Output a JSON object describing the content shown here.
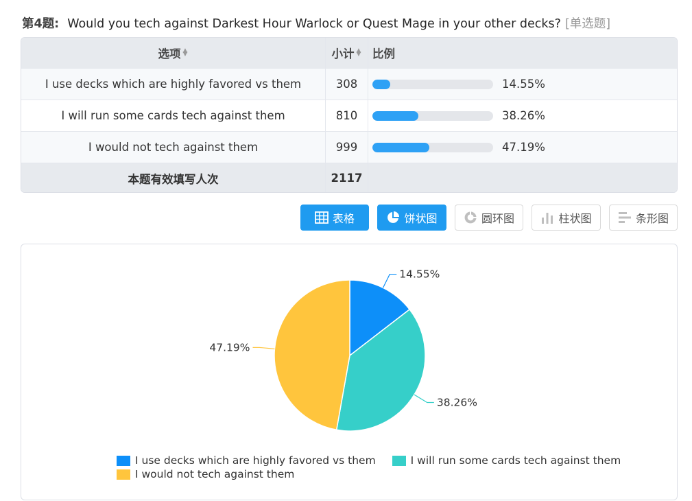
{
  "question": {
    "number": "第4题:",
    "text": "Would you tech against Darkest Hour Warlock or Quest Mage in your other decks?",
    "type": "[单选题]"
  },
  "table": {
    "headers": {
      "option": "选项",
      "count": "小计",
      "ratio": "比例"
    },
    "rows": [
      {
        "option": "I use decks which are highly favored vs them",
        "count": "308",
        "percent": "14.55%",
        "fraction": 0.1455
      },
      {
        "option": "I will run some cards tech against them",
        "count": "810",
        "percent": "38.26%",
        "fraction": 0.3826
      },
      {
        "option": "I would not tech against them",
        "count": "999",
        "percent": "47.19%",
        "fraction": 0.4719
      }
    ],
    "total": {
      "label": "本题有效填写人次",
      "count": "2117"
    }
  },
  "view_buttons": [
    {
      "label": "表格",
      "icon": "table-icon",
      "active": true
    },
    {
      "label": "饼状图",
      "icon": "pie-chart-icon",
      "active": true
    },
    {
      "label": "圆环图",
      "icon": "donut-chart-icon",
      "active": false
    },
    {
      "label": "柱状图",
      "icon": "bar-chart-icon",
      "active": false
    },
    {
      "label": "条形图",
      "icon": "horizontal-bar-chart-icon",
      "active": false
    }
  ],
  "chart_data": {
    "type": "pie",
    "categories": [
      "I use decks which are highly favored vs them",
      "I will run some cards tech against them",
      "I would not tech against them"
    ],
    "values": [
      14.55,
      38.26,
      47.19
    ],
    "labels": [
      "14.55%",
      "38.26%",
      "47.19%"
    ],
    "colors": [
      "#0d8ff9",
      "#36cfc9",
      "#ffc53d"
    ],
    "legend": "bottom",
    "title": ""
  }
}
